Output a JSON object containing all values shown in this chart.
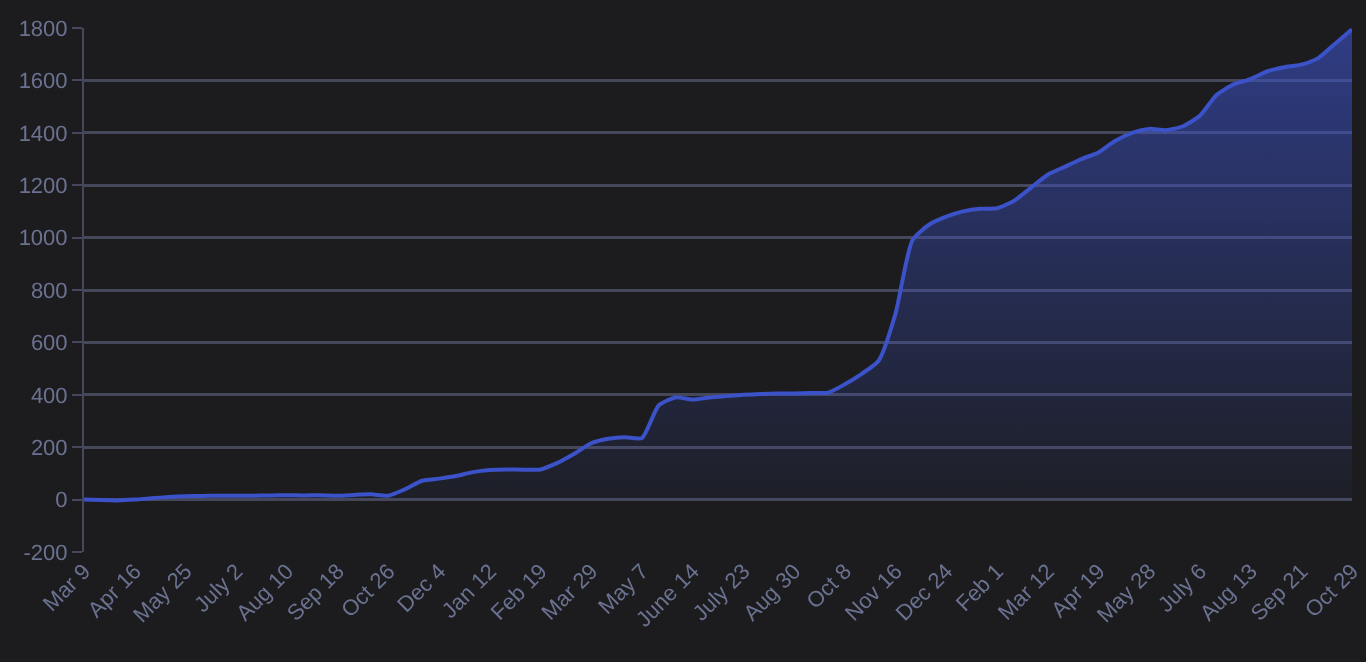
{
  "chart_data": {
    "type": "area",
    "categories": [
      "Mar 9",
      null,
      null,
      "Apr 16",
      null,
      null,
      "May 25",
      null,
      null,
      "July 2",
      null,
      null,
      "Aug 10",
      null,
      null,
      "Sep 18",
      null,
      null,
      "Oct 26",
      null,
      null,
      "Dec 4",
      null,
      null,
      "Jan 12",
      null,
      null,
      "Feb 19",
      null,
      null,
      "Mar 29",
      null,
      null,
      "May 7",
      null,
      null,
      "June 14",
      null,
      null,
      "July 23",
      null,
      null,
      "Aug 30",
      null,
      null,
      "Oct 8",
      null,
      null,
      "Nov 16",
      null,
      null,
      "Dec 24",
      null,
      null,
      "Feb 1",
      null,
      null,
      "Mar 12",
      null,
      null,
      "Apr 19",
      null,
      null,
      "May 28",
      null,
      null,
      "July 6",
      null,
      null,
      "Aug 13",
      null,
      null,
      "Sep 21",
      null,
      null,
      "Oct 29"
    ],
    "series": [
      {
        "color": "#3b52c8",
        "values": [
          0,
          -2,
          -3,
          0,
          5,
          10,
          13,
          14,
          15,
          15,
          15,
          16,
          17,
          16,
          17,
          15,
          18,
          20,
          15,
          40,
          72,
          80,
          90,
          105,
          113,
          115,
          114,
          115,
          140,
          175,
          215,
          232,
          238,
          235,
          360,
          390,
          382,
          390,
          395,
          400,
          403,
          405,
          405,
          407,
          408,
          440,
          480,
          530,
          710,
          990,
          1050,
          1080,
          1100,
          1110,
          1112,
          1140,
          1190,
          1240,
          1270,
          1300,
          1325,
          1370,
          1400,
          1415,
          1410,
          1425,
          1465,
          1545,
          1585,
          1605,
          1635,
          1650,
          1660,
          1685,
          1740,
          1795
        ]
      }
    ],
    "ylim": [
      -200,
      1800
    ],
    "yticks": [
      -200,
      0,
      200,
      400,
      600,
      800,
      1000,
      1200,
      1400,
      1600,
      1800
    ],
    "grid": "y"
  }
}
